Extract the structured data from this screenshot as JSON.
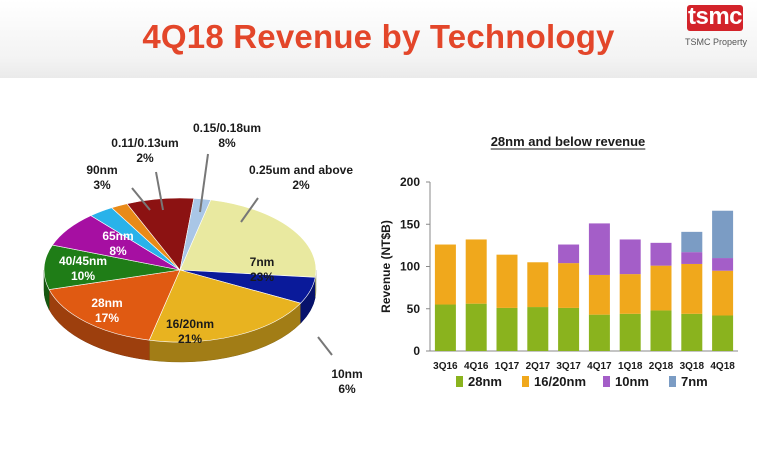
{
  "header": {
    "title": "4Q18 Revenue by Technology",
    "logo_text": "tsmc",
    "logo_caption": "TSMC Property"
  },
  "chart_data": [
    {
      "type": "pie",
      "title": "",
      "slices": [
        {
          "label": "7nm",
          "value": 23,
          "pct_label": "23%",
          "color": "#e9e9a0"
        },
        {
          "label": "10nm",
          "value": 6,
          "pct_label": "6%",
          "color": "#0a1a9a"
        },
        {
          "label": "16/20nm",
          "value": 21,
          "pct_label": "21%",
          "color": "#e8b320"
        },
        {
          "label": "28nm",
          "value": 17,
          "pct_label": "17%",
          "color": "#e05a12"
        },
        {
          "label": "40/45nm",
          "value": 10,
          "pct_label": "10%",
          "color": "#1f7d17"
        },
        {
          "label": "65nm",
          "value": 8,
          "pct_label": "8%",
          "color": "#a60fa2"
        },
        {
          "label": "90nm",
          "value": 3,
          "pct_label": "3%",
          "color": "#29b2ea"
        },
        {
          "label": "0.11/0.13um",
          "value": 2,
          "pct_label": "2%",
          "color": "#e98a18"
        },
        {
          "label": "0.15/0.18um",
          "value": 8,
          "pct_label": "8%",
          "color": "#8c1212"
        },
        {
          "label": "0.25um and above",
          "value": 2,
          "pct_label": "2%",
          "color": "#a9c6e6"
        }
      ]
    },
    {
      "type": "bar",
      "stacked": true,
      "title": "28nm and below revenue",
      "ylabel": "Revenue (NT$B)",
      "xlabel": "",
      "ylim": [
        0,
        200
      ],
      "yticks": [
        0,
        50,
        100,
        150,
        200
      ],
      "grid": false,
      "legend_position": "bottom",
      "categories": [
        "3Q16",
        "4Q16",
        "1Q17",
        "2Q17",
        "3Q17",
        "4Q17",
        "1Q18",
        "2Q18",
        "3Q18",
        "4Q18"
      ],
      "series": [
        {
          "name": "28nm",
          "color": "#8ab31e",
          "values": [
            55,
            56,
            51,
            52,
            51,
            43,
            44,
            48,
            44,
            42
          ]
        },
        {
          "name": "16/20nm",
          "color": "#f0a81c",
          "values": [
            71,
            76,
            63,
            53,
            53,
            47,
            47,
            53,
            59,
            53
          ]
        },
        {
          "name": "10nm",
          "color": "#a45ec8",
          "values": [
            0,
            0,
            0,
            0,
            22,
            61,
            41,
            27,
            14,
            15
          ]
        },
        {
          "name": "7nm",
          "color": "#7b9cc4",
          "values": [
            0,
            0,
            0,
            0,
            0,
            0,
            0,
            0,
            24,
            56
          ]
        }
      ]
    }
  ]
}
